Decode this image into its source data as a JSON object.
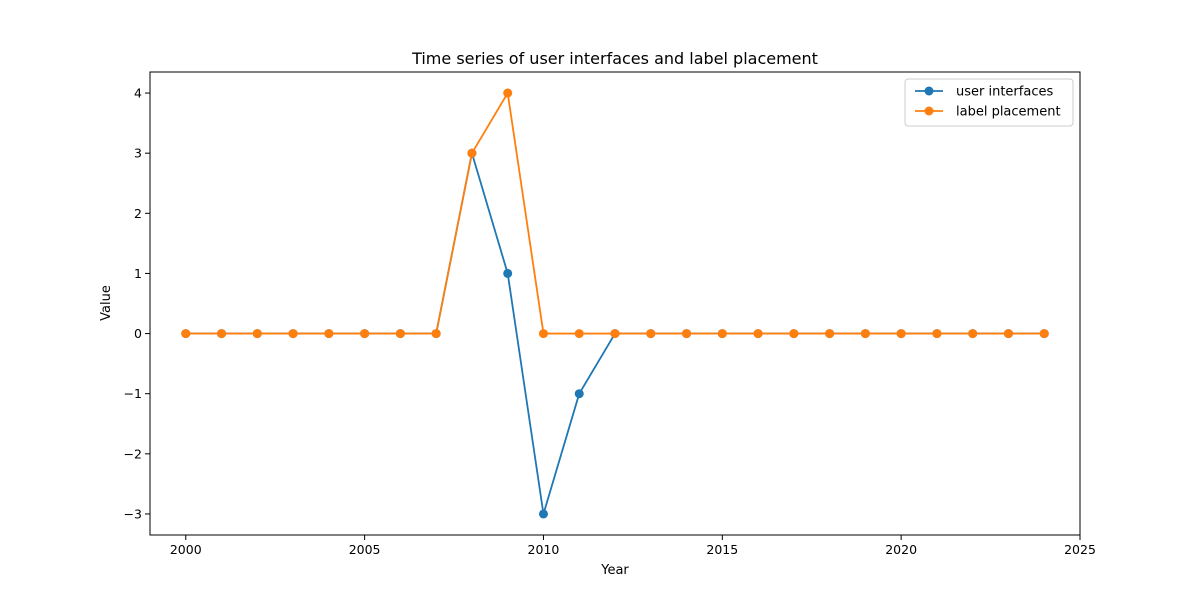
{
  "chart_data": {
    "type": "line",
    "title": "Time series of user interfaces and label placement",
    "xlabel": "Year",
    "ylabel": "Value",
    "xlim": [
      1999,
      2025
    ],
    "ylim": [
      -3.35,
      4.35
    ],
    "xticks": [
      2000,
      2005,
      2010,
      2015,
      2020,
      2025
    ],
    "yticks": [
      -3,
      -2,
      -1,
      0,
      1,
      2,
      3,
      4
    ],
    "ytick_labels": [
      "−3",
      "−2",
      "−1",
      "0",
      "1",
      "2",
      "3",
      "4"
    ],
    "grid": false,
    "legend_position": "top-right",
    "x": [
      2000,
      2001,
      2002,
      2003,
      2004,
      2005,
      2006,
      2007,
      2008,
      2009,
      2010,
      2011,
      2012,
      2013,
      2014,
      2015,
      2016,
      2017,
      2018,
      2019,
      2020,
      2021,
      2022,
      2023,
      2024
    ],
    "series": [
      {
        "name": "user interfaces",
        "color": "#1f77b4",
        "values": [
          0,
          0,
          0,
          0,
          0,
          0,
          0,
          0,
          3,
          1,
          -3,
          -1,
          0,
          0,
          0,
          0,
          0,
          0,
          0,
          0,
          0,
          0,
          0,
          0,
          0
        ]
      },
      {
        "name": "label placement",
        "color": "#ff7f0e",
        "values": [
          0,
          0,
          0,
          0,
          0,
          0,
          0,
          0,
          3,
          4,
          0,
          0,
          0,
          0,
          0,
          0,
          0,
          0,
          0,
          0,
          0,
          0,
          0,
          0,
          0
        ]
      }
    ]
  }
}
